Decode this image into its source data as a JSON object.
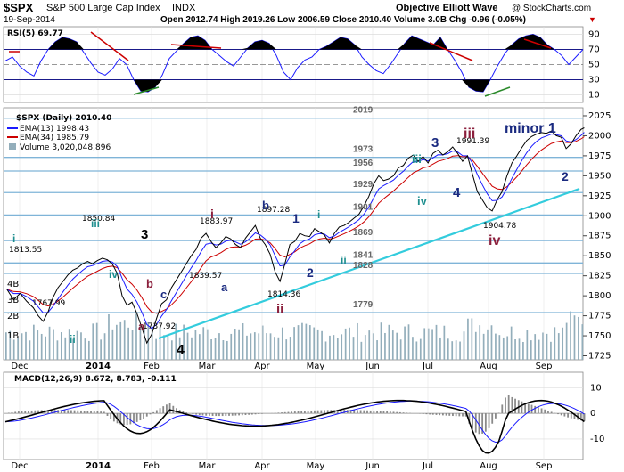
{
  "header": {
    "symbol": "$SPX",
    "name": "S&P 500 Large Cap Index",
    "exchange": "INDX",
    "date": "19-Sep-2014",
    "quote": "Open 2012.74  High 2019.26  Low 2006.59  Close 2010.40  Volume 3.0B  Chg -0.96 (-0.05%)",
    "quote_arrow": "▼",
    "author": "Objective Elliott Wave",
    "credit": "@ StockCharts.com"
  },
  "rsi_panel": {
    "legend": "RSI(5) 69.77",
    "levels": [
      "90",
      "70",
      "50",
      "30",
      "10"
    ]
  },
  "price_panel": {
    "legend_title": "$SPX (Daily) 2010.40",
    "legend_ema13": "EMA(13) 1998.43",
    "legend_ema34": "EMA(34) 1985.79",
    "legend_volume": "Volume 3,020,048,896",
    "y_ticks": [
      "2025",
      "2000",
      "1975",
      "1950",
      "1925",
      "1900",
      "1875",
      "1850",
      "1825",
      "1800",
      "1775",
      "1750",
      "1725"
    ],
    "vol_ticks": [
      "4B",
      "3B",
      "2B",
      "1B"
    ],
    "support_levels": [
      "2019",
      "1973",
      "1956",
      "1929",
      "1901",
      "1869",
      "1841",
      "1828",
      "1779"
    ],
    "price_labels": [
      "1813.55",
      "1767.99",
      "1850.84",
      "1737.92",
      "1839.57",
      "1883.97",
      "1897.28",
      "1814.36",
      "1991.39",
      "1904.78"
    ],
    "wave_labels": [
      "i",
      "ii",
      "iii",
      "iv",
      "3",
      "a",
      "b",
      "c",
      "4",
      "i",
      "a",
      "b",
      "ii",
      "1",
      "2",
      "i",
      "ii",
      "3",
      "iii",
      "iv",
      "4",
      "iii",
      "iv",
      "minor 1",
      "2"
    ]
  },
  "macd_panel": {
    "legend": "MACD(12,26,9) 8.672, 8.783, -0.111",
    "y_ticks": [
      "10",
      "0",
      "-10"
    ]
  },
  "x_axis": [
    "Dec",
    "2014",
    "Feb",
    "Mar",
    "Apr",
    "May",
    "Jun",
    "Jul",
    "Aug",
    "Sep"
  ],
  "colors": {
    "price": "#000000",
    "ema13": "#1a1aff",
    "ema34": "#cc0000",
    "volume": "#93aebb",
    "trendline": "#33ccdd",
    "support": "#7fb4d8",
    "wave_primary": "#000000",
    "wave_minor": "#1a2a80",
    "wave_minute": "#1f8f8f",
    "wave_corrective": "#8b1f3c"
  },
  "chart_data": [
    {
      "type": "line",
      "title": "$SPX S&P 500 Large Cap Index INDX",
      "series": [
        {
          "name": "$SPX (Daily)",
          "values": [
            [
              1,
              1808
            ],
            [
              5,
              1795
            ],
            [
              9,
              1803
            ],
            [
              13,
              1793
            ],
            [
              17,
              1785
            ],
            [
              20,
              1775
            ],
            [
              23,
              1768
            ],
            [
              26,
              1780
            ],
            [
              29,
              1798
            ],
            [
              32,
              1810
            ],
            [
              35,
              1818
            ],
            [
              38,
              1826
            ],
            [
              41,
              1832
            ],
            [
              44,
              1835
            ],
            [
              47,
              1840
            ],
            [
              50,
              1843
            ],
            [
              53,
              1840
            ],
            [
              56,
              1844
            ],
            [
              59,
              1847
            ],
            [
              62,
              1845
            ],
            [
              65,
              1840
            ],
            [
              68,
              1828
            ],
            [
              71,
              1800
            ],
            [
              74,
              1788
            ],
            [
              77,
              1792
            ],
            [
              80,
              1778
            ],
            [
              83,
              1760
            ],
            [
              86,
              1741
            ],
            [
              89,
              1752
            ],
            [
              92,
              1772
            ],
            [
              95,
              1790
            ],
            [
              98,
              1795
            ],
            [
              101,
              1810
            ],
            [
              104,
              1820
            ],
            [
              107,
              1830
            ],
            [
              110,
              1840
            ],
            [
              113,
              1850
            ],
            [
              116,
              1858
            ],
            [
              119,
              1872
            ],
            [
              122,
              1878
            ],
            [
              125,
              1868
            ],
            [
              128,
              1860
            ],
            [
              131,
              1866
            ],
            [
              134,
              1874
            ],
            [
              137,
              1871
            ],
            [
              140,
              1864
            ],
            [
              143,
              1860
            ],
            [
              146,
              1872
            ],
            [
              149,
              1880
            ],
            [
              152,
              1888
            ],
            [
              155,
              1872
            ],
            [
              158,
              1864
            ],
            [
              161,
              1852
            ],
            [
              164,
              1830
            ],
            [
              167,
              1818
            ],
            [
              170,
              1840
            ],
            [
              173,
              1864
            ],
            [
              176,
              1868
            ],
            [
              179,
              1878
            ],
            [
              182,
              1875
            ],
            [
              185,
              1874
            ],
            [
              188,
              1884
            ],
            [
              191,
              1880
            ],
            [
              194,
              1876
            ],
            [
              197,
              1866
            ],
            [
              200,
              1878
            ],
            [
              203,
              1886
            ],
            [
              206,
              1888
            ],
            [
              209,
              1892
            ],
            [
              212,
              1897
            ],
            [
              215,
              1902
            ],
            [
              218,
              1912
            ],
            [
              221,
              1924
            ],
            [
              224,
              1940
            ],
            [
              227,
              1950
            ],
            [
              230,
              1944
            ],
            [
              233,
              1946
            ],
            [
              236,
              1950
            ],
            [
              239,
              1960
            ],
            [
              242,
              1963
            ],
            [
              245,
              1972
            ],
            [
              248,
              1976
            ],
            [
              251,
              1968
            ],
            [
              254,
              1974
            ],
            [
              257,
              1966
            ],
            [
              260,
              1978
            ],
            [
              263,
              1982
            ],
            [
              266,
              1976
            ],
            [
              269,
              1980
            ],
            [
              272,
              1986
            ],
            [
              275,
              1978
            ],
            [
              278,
              1968
            ],
            [
              281,
              1975
            ],
            [
              284,
              1952
            ],
            [
              287,
              1930
            ],
            [
              290,
              1920
            ],
            [
              293,
              1910
            ],
            [
              296,
              1906
            ],
            [
              299,
              1920
            ],
            [
              302,
              1930
            ],
            [
              305,
              1950
            ],
            [
              308,
              1966
            ],
            [
              311,
              1975
            ],
            [
              314,
              1985
            ],
            [
              317,
              1994
            ],
            [
              320,
              1999
            ],
            [
              323,
              2002
            ],
            [
              326,
              2004
            ],
            [
              329,
              2003
            ],
            [
              332,
              2006
            ],
            [
              335,
              2000
            ],
            [
              338,
              1998
            ],
            [
              341,
              1984
            ],
            [
              344,
              1990
            ],
            [
              347,
              2000
            ],
            [
              350,
              2008
            ],
            [
              352,
              2010
            ]
          ]
        },
        {
          "name": "EMA(13)",
          "value": 1998.43
        },
        {
          "name": "EMA(34)",
          "value": 1985.79
        }
      ],
      "ylim": [
        1720,
        2035
      ]
    },
    {
      "type": "line",
      "title": "RSI(5) 69.77",
      "ylim": [
        0,
        100
      ],
      "series": [
        {
          "name": "RSI(5)",
          "values": [
            55,
            60,
            48,
            40,
            35,
            55,
            70,
            80,
            86,
            84,
            80,
            66,
            52,
            40,
            36,
            44,
            58,
            50,
            30,
            15,
            14,
            20,
            36,
            58,
            68,
            78,
            86,
            88,
            82,
            70,
            62,
            54,
            48,
            60,
            72,
            80,
            82,
            78,
            62,
            40,
            30,
            46,
            56,
            60,
            70,
            74,
            80,
            86,
            84,
            76,
            60,
            50,
            42,
            38,
            50,
            64,
            78,
            88,
            84,
            80,
            76,
            86,
            70,
            56,
            40,
            20,
            15,
            14,
            30,
            48,
            64,
            76,
            84,
            88,
            90,
            86,
            76,
            70,
            62,
            50,
            60,
            70
          ]
        }
      ]
    },
    {
      "type": "line",
      "title": "MACD(12,26,9) 8.672, 8.783, -0.111",
      "ylim": [
        -18,
        16
      ],
      "series": [
        {
          "name": "MACD",
          "value": 8.672
        },
        {
          "name": "Signal",
          "value": 8.783
        },
        {
          "name": "Histogram",
          "value": -0.111
        }
      ]
    }
  ]
}
